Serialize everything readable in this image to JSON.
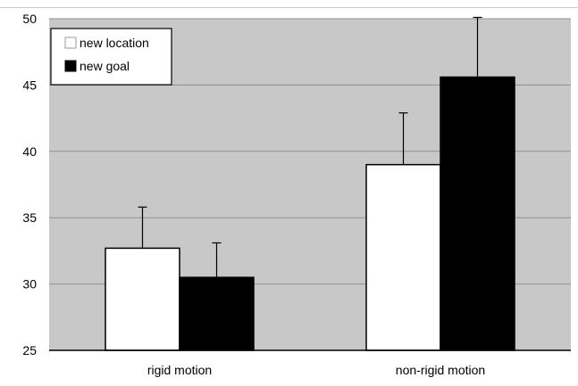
{
  "chart_data": {
    "type": "bar",
    "categories": [
      "rigid motion",
      "non-rigid motion"
    ],
    "series": [
      {
        "name": "new location",
        "values": [
          32.7,
          39.0
        ],
        "error": [
          3.1,
          3.9
        ],
        "color": "#ffffff"
      },
      {
        "name": "new goal",
        "values": [
          30.5,
          45.6
        ],
        "error": [
          2.6,
          4.5
        ],
        "color": "#000000"
      }
    ],
    "ylim": [
      25,
      50
    ],
    "yticks": [
      "25",
      "30",
      "35",
      "40",
      "45",
      "50"
    ],
    "grid": true,
    "legend": "top-left",
    "plot_background": "#c8c8c8"
  }
}
